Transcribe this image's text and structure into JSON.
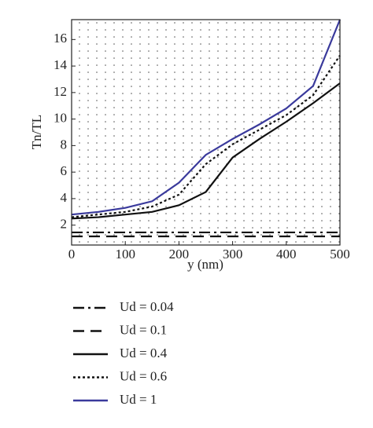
{
  "chart_data": {
    "type": "line",
    "x_label": "y (nm)",
    "y_label": "Tn/TL",
    "x": [
      0,
      50,
      100,
      150,
      200,
      250,
      300,
      350,
      400,
      450,
      500
    ],
    "xlim": [
      0,
      500
    ],
    "xticks": [
      0,
      100,
      200,
      300,
      400,
      500
    ],
    "ylim": [
      0.5,
      17.5
    ],
    "yticks": [
      2,
      4,
      6,
      8,
      10,
      12,
      14,
      16
    ],
    "legend": "below",
    "series": [
      {
        "name": "Ud = 0.04",
        "color": "#111111",
        "dash": "14 5 3 5",
        "values": [
          1.45,
          1.45,
          1.45,
          1.45,
          1.45,
          1.45,
          1.45,
          1.45,
          1.45,
          1.45,
          1.45
        ]
      },
      {
        "name": "Ud = 0.1",
        "color": "#111111",
        "dash": "14 8",
        "values": [
          1.15,
          1.15,
          1.15,
          1.15,
          1.15,
          1.15,
          1.15,
          1.15,
          1.15,
          1.15,
          1.15
        ]
      },
      {
        "name": "Ud = 0.4",
        "color": "#111111",
        "dash": "none",
        "values": [
          2.5,
          2.6,
          2.8,
          3.0,
          3.5,
          4.5,
          7.1,
          8.5,
          9.8,
          11.2,
          12.7
        ]
      },
      {
        "name": "Ud = 0.6",
        "color": "#111111",
        "dash": "3 3",
        "values": [
          2.6,
          2.8,
          3.0,
          3.4,
          4.3,
          6.6,
          8.1,
          9.2,
          10.3,
          11.8,
          14.8
        ]
      },
      {
        "name": "Ud = 1",
        "color": "#3a3a9c",
        "dash": "none",
        "values": [
          2.8,
          3.0,
          3.3,
          3.8,
          5.2,
          7.3,
          8.5,
          9.6,
          10.8,
          12.5,
          17.5
        ]
      }
    ]
  }
}
